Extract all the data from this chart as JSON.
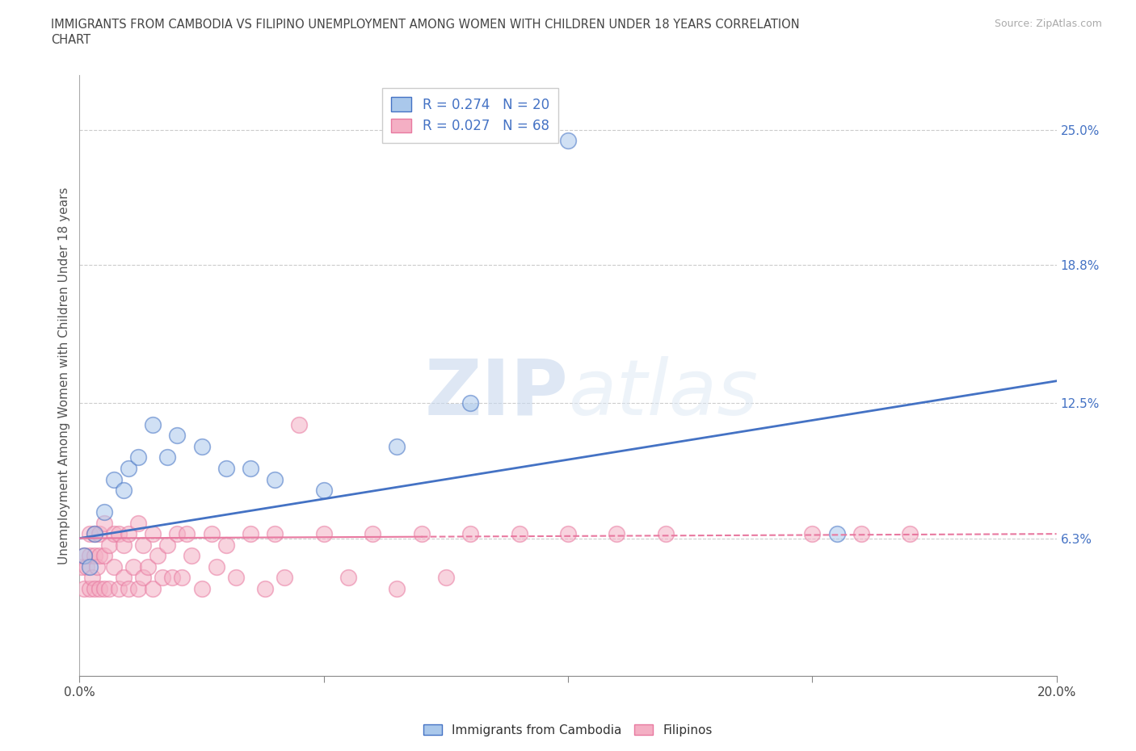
{
  "title_line1": "IMMIGRANTS FROM CAMBODIA VS FILIPINO UNEMPLOYMENT AMONG WOMEN WITH CHILDREN UNDER 18 YEARS CORRELATION",
  "title_line2": "CHART",
  "source": "Source: ZipAtlas.com",
  "ylabel": "Unemployment Among Women with Children Under 18 years",
  "xlim": [
    0.0,
    0.2
  ],
  "ylim": [
    0.0,
    0.275
  ],
  "xticks": [
    0.0,
    0.05,
    0.1,
    0.15,
    0.2
  ],
  "xticklabels": [
    "0.0%",
    "",
    "",
    "",
    "20.0%"
  ],
  "yticks": [
    0.063,
    0.125,
    0.188,
    0.25
  ],
  "yticklabels": [
    "6.3%",
    "12.5%",
    "18.8%",
    "25.0%"
  ],
  "watermark": "ZIPatlas",
  "blue_color": "#aac8eb",
  "pink_color": "#f4afc4",
  "blue_edge_color": "#4472c4",
  "pink_edge_color": "#e879a0",
  "blue_line_color": "#4472c4",
  "pink_line_color": "#e879a0",
  "blue_scatter_x": [
    0.001,
    0.002,
    0.003,
    0.005,
    0.007,
    0.009,
    0.01,
    0.012,
    0.015,
    0.018,
    0.02,
    0.025,
    0.03,
    0.035,
    0.04,
    0.05,
    0.065,
    0.08,
    0.1,
    0.155
  ],
  "blue_scatter_y": [
    0.055,
    0.05,
    0.065,
    0.075,
    0.09,
    0.085,
    0.095,
    0.1,
    0.115,
    0.1,
    0.11,
    0.105,
    0.095,
    0.095,
    0.09,
    0.085,
    0.105,
    0.125,
    0.245,
    0.065
  ],
  "pink_scatter_x": [
    0.0005,
    0.001,
    0.001,
    0.0015,
    0.002,
    0.002,
    0.002,
    0.0025,
    0.003,
    0.003,
    0.003,
    0.0035,
    0.004,
    0.004,
    0.004,
    0.005,
    0.005,
    0.005,
    0.006,
    0.006,
    0.007,
    0.007,
    0.008,
    0.008,
    0.009,
    0.009,
    0.01,
    0.01,
    0.011,
    0.012,
    0.012,
    0.013,
    0.013,
    0.014,
    0.015,
    0.015,
    0.016,
    0.017,
    0.018,
    0.019,
    0.02,
    0.021,
    0.022,
    0.023,
    0.025,
    0.027,
    0.028,
    0.03,
    0.032,
    0.035,
    0.038,
    0.04,
    0.042,
    0.045,
    0.05,
    0.055,
    0.06,
    0.065,
    0.07,
    0.075,
    0.08,
    0.09,
    0.1,
    0.11,
    0.12,
    0.15,
    0.16,
    0.17
  ],
  "pink_scatter_y": [
    0.05,
    0.04,
    0.055,
    0.05,
    0.04,
    0.055,
    0.065,
    0.045,
    0.04,
    0.055,
    0.065,
    0.05,
    0.04,
    0.055,
    0.065,
    0.04,
    0.055,
    0.07,
    0.04,
    0.06,
    0.05,
    0.065,
    0.04,
    0.065,
    0.045,
    0.06,
    0.04,
    0.065,
    0.05,
    0.04,
    0.07,
    0.045,
    0.06,
    0.05,
    0.04,
    0.065,
    0.055,
    0.045,
    0.06,
    0.045,
    0.065,
    0.045,
    0.065,
    0.055,
    0.04,
    0.065,
    0.05,
    0.06,
    0.045,
    0.065,
    0.04,
    0.065,
    0.045,
    0.115,
    0.065,
    0.045,
    0.065,
    0.04,
    0.065,
    0.045,
    0.065,
    0.065,
    0.065,
    0.065,
    0.065,
    0.065,
    0.065,
    0.065
  ],
  "legend_label1": "Immigrants from Cambodia",
  "legend_label2": "Filipinos",
  "blue_trend_x0": 0.0,
  "blue_trend_y0": 0.063,
  "blue_trend_x1": 0.2,
  "blue_trend_y1": 0.135,
  "pink_trend_x0": 0.0,
  "pink_trend_y0": 0.063,
  "pink_trend_x1": 0.2,
  "pink_trend_y1": 0.065
}
